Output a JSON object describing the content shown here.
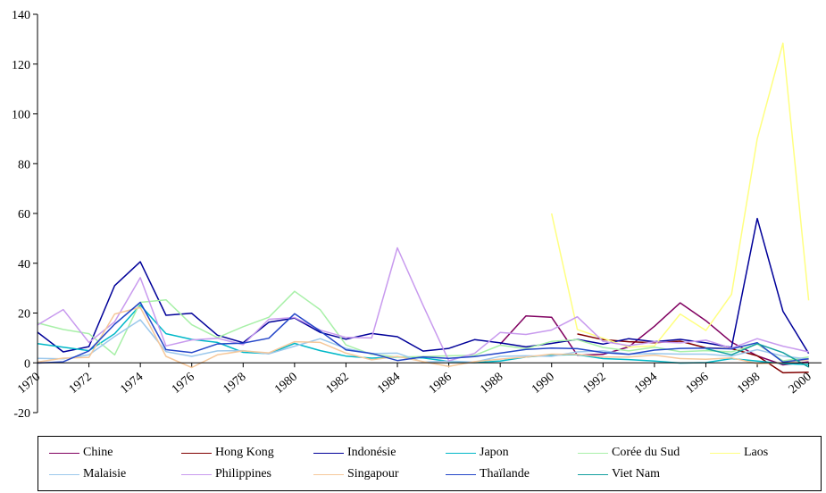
{
  "chart_data": {
    "type": "line",
    "title": "",
    "xlabel": "",
    "ylabel": "",
    "xlim": [
      1970,
      2000.5
    ],
    "ylim": [
      -20,
      140
    ],
    "yticks": [
      -20,
      0,
      20,
      40,
      60,
      80,
      100,
      120,
      140
    ],
    "xticks": [
      1970,
      1972,
      1974,
      1976,
      1978,
      1980,
      1982,
      1984,
      1986,
      1988,
      1990,
      1992,
      1994,
      1996,
      1998,
      2000
    ],
    "ytick_labels": [
      "-20",
      "0",
      "20",
      "40",
      "60",
      "80",
      "100",
      "120",
      "140"
    ],
    "xtick_labels": [
      "1970",
      "1972",
      "1974",
      "1976",
      "1978",
      "1980",
      "1982",
      "1984",
      "1986",
      "1988",
      "1990",
      "1992",
      "1994",
      "1996",
      "1998",
      "2000"
    ],
    "grid": false,
    "legend_position": "bottom",
    "x": [
      1970,
      1971,
      1972,
      1973,
      1974,
      1975,
      1976,
      1977,
      1978,
      1979,
      1980,
      1981,
      1982,
      1983,
      1984,
      1985,
      1986,
      1987,
      1988,
      1989,
      1990,
      1991,
      1992,
      1993,
      1994,
      1995,
      1996,
      1997,
      1998,
      1999,
      2000
    ],
    "series": [
      {
        "name": "Chine",
        "color": "#800060",
        "values": [
          null,
          null,
          null,
          null,
          null,
          null,
          null,
          null,
          null,
          null,
          null,
          null,
          null,
          null,
          null,
          null,
          null,
          null,
          7.5,
          18.8,
          18.3,
          3.1,
          3.4,
          6.4,
          14.7,
          24.1,
          16.9,
          8.3,
          2.8,
          -0.8,
          0.4
        ]
      },
      {
        "name": "Hong Kong",
        "color": "#800000",
        "values": [
          null,
          null,
          null,
          null,
          null,
          null,
          null,
          null,
          null,
          null,
          null,
          null,
          null,
          null,
          null,
          null,
          null,
          null,
          null,
          null,
          null,
          11.6,
          9.3,
          8.5,
          8.1,
          8.7,
          6.0,
          5.7,
          2.8,
          -4.0,
          -3.8
        ]
      },
      {
        "name": "Indonésie",
        "color": "#000099",
        "values": [
          12.3,
          4.4,
          6.5,
          31.0,
          40.6,
          19.1,
          19.9,
          11.1,
          8.1,
          16.3,
          18.0,
          12.2,
          9.5,
          11.8,
          10.5,
          4.7,
          5.8,
          9.3,
          8.0,
          6.4,
          7.8,
          9.4,
          7.5,
          9.7,
          8.5,
          9.4,
          8.0,
          6.2,
          58.0,
          20.7,
          3.8
        ]
      },
      {
        "name": "Japon",
        "color": "#00B8C8",
        "values": [
          7.7,
          6.3,
          4.9,
          11.7,
          23.2,
          11.7,
          9.4,
          8.2,
          4.2,
          3.7,
          7.8,
          4.9,
          2.7,
          1.9,
          2.3,
          2.0,
          0.6,
          0.1,
          0.7,
          2.3,
          3.1,
          3.3,
          1.7,
          1.3,
          0.7,
          -0.1,
          0.1,
          1.7,
          0.7,
          -0.3,
          -0.7
        ]
      },
      {
        "name": "Corée du Sud",
        "color": "#A8F0A8",
        "values": [
          16.0,
          13.4,
          11.7,
          3.2,
          24.3,
          25.3,
          15.3,
          10.1,
          14.5,
          18.3,
          28.7,
          21.3,
          7.2,
          3.4,
          2.3,
          2.5,
          2.8,
          3.0,
          7.1,
          5.7,
          8.6,
          9.3,
          6.2,
          4.8,
          6.3,
          4.5,
          4.9,
          4.4,
          7.5,
          0.8,
          2.3
        ]
      },
      {
        "name": "Laos",
        "color": "#FFFF80",
        "values": [
          null,
          null,
          null,
          null,
          null,
          null,
          null,
          null,
          null,
          null,
          null,
          null,
          null,
          null,
          null,
          null,
          null,
          null,
          null,
          null,
          60.0,
          13.4,
          9.9,
          6.3,
          6.8,
          19.6,
          13.0,
          27.5,
          90.0,
          128.4,
          25.1
        ]
      },
      {
        "name": "Malaisie",
        "color": "#9CC8EC",
        "values": [
          1.8,
          1.6,
          3.2,
          10.6,
          17.3,
          4.5,
          2.6,
          4.8,
          4.9,
          3.6,
          6.7,
          9.7,
          5.8,
          3.7,
          3.9,
          0.3,
          0.7,
          0.3,
          2.6,
          2.8,
          2.6,
          4.4,
          4.8,
          3.5,
          3.7,
          3.5,
          3.5,
          2.7,
          5.3,
          2.7,
          1.5
        ]
      },
      {
        "name": "Philippines",
        "color": "#C89AEE",
        "values": [
          15.2,
          21.4,
          8.2,
          16.5,
          34.2,
          6.8,
          9.2,
          9.9,
          7.3,
          17.5,
          18.2,
          13.1,
          10.2,
          10.0,
          46.2,
          23.1,
          0.8,
          3.8,
          12.2,
          11.4,
          13.2,
          18.5,
          8.6,
          6.9,
          8.4,
          8.0,
          9.1,
          5.9,
          9.7,
          6.7,
          4.4
        ]
      },
      {
        "name": "Singapour",
        "color": "#F6C89A",
        "values": [
          0.3,
          1.9,
          2.2,
          19.6,
          22.3,
          2.6,
          -1.9,
          3.2,
          4.8,
          4.0,
          8.5,
          8.2,
          3.9,
          1.2,
          2.6,
          0.5,
          -1.4,
          0.5,
          1.5,
          2.3,
          3.5,
          3.4,
          2.3,
          2.3,
          3.1,
          1.7,
          1.4,
          2.0,
          -0.3,
          0.0,
          1.3
        ]
      },
      {
        "name": "Thaïlande",
        "color": "#2446C8",
        "values": [
          -0.1,
          0.4,
          4.8,
          15.5,
          24.3,
          5.3,
          4.1,
          7.6,
          7.9,
          9.9,
          19.7,
          12.7,
          5.2,
          3.8,
          0.9,
          2.4,
          1.8,
          2.5,
          3.9,
          5.4,
          5.9,
          5.7,
          4.1,
          3.4,
          5.1,
          5.8,
          5.9,
          5.6,
          8.1,
          0.3,
          1.6
        ]
      },
      {
        "name": "Viet Nam",
        "color": "#14A0A0",
        "values": [
          null,
          null,
          null,
          null,
          null,
          null,
          null,
          null,
          null,
          null,
          null,
          null,
          null,
          null,
          null,
          null,
          null,
          null,
          null,
          null,
          null,
          null,
          null,
          null,
          null,
          null,
          5.7,
          3.2,
          7.7,
          4.1,
          -1.7
        ]
      }
    ]
  }
}
